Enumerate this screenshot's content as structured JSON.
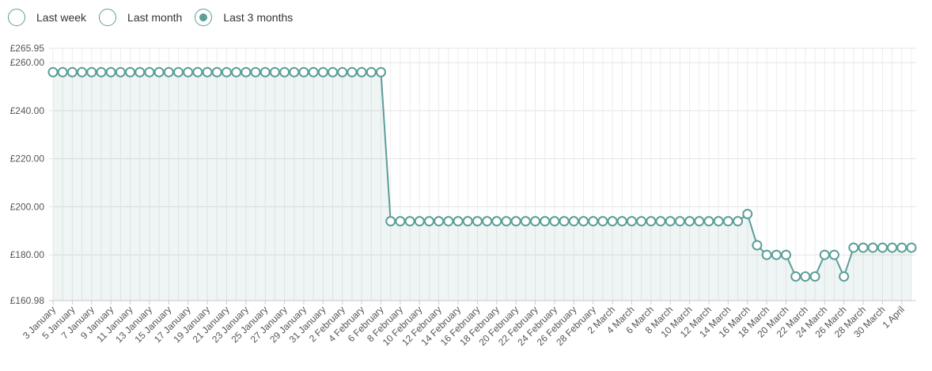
{
  "controls": {
    "options": [
      {
        "label": "Last week",
        "selected": false
      },
      {
        "label": "Last month",
        "selected": false
      },
      {
        "label": "Last 3 months",
        "selected": true
      }
    ]
  },
  "chart_data": {
    "type": "line",
    "categories": [
      "3 January",
      null,
      "5 January",
      null,
      "7 January",
      null,
      "9 January",
      null,
      "11 January",
      null,
      "13 January",
      null,
      "15 January",
      null,
      "17 January",
      null,
      "19 January",
      null,
      "21 January",
      null,
      "23 January",
      null,
      "25 January",
      null,
      "27 January",
      null,
      "29 January",
      null,
      "31 January",
      null,
      "2 February",
      null,
      "4 February",
      null,
      "6 February",
      null,
      "8 February",
      null,
      "10 February",
      null,
      "12 February",
      null,
      "14 February",
      null,
      "16 February",
      null,
      "18 February",
      null,
      "20 February",
      null,
      "22 February",
      null,
      "24 February",
      null,
      "26 February",
      null,
      "28 February",
      null,
      "2 March",
      null,
      "4 March",
      null,
      "6 March",
      null,
      "8 March",
      null,
      "10 March",
      null,
      "12 March",
      null,
      "14 March",
      null,
      "16 March",
      null,
      "18 March",
      null,
      "20 March",
      null,
      "22 March",
      null,
      "24 March",
      null,
      "26 March",
      null,
      "28 March",
      null,
      "30 March",
      null,
      "1 April",
      null
    ],
    "series": [
      {
        "color": "#5a9e98",
        "values": [
          256,
          256,
          256,
          256,
          256,
          256,
          256,
          256,
          256,
          256,
          256,
          256,
          256,
          256,
          256,
          256,
          256,
          256,
          256,
          256,
          256,
          256,
          256,
          256,
          256,
          256,
          256,
          256,
          256,
          256,
          256,
          256,
          256,
          256,
          256,
          194,
          194,
          194,
          194,
          194,
          194,
          194,
          194,
          194,
          194,
          194,
          194,
          194,
          194,
          194,
          194,
          194,
          194,
          194,
          194,
          194,
          194,
          194,
          194,
          194,
          194,
          194,
          194,
          194,
          194,
          194,
          194,
          194,
          194,
          194,
          194,
          194,
          197,
          184,
          180,
          180,
          180,
          171,
          171,
          171,
          180,
          180,
          171,
          183,
          183,
          183,
          183,
          183,
          183,
          183
        ]
      }
    ],
    "ylim": [
      160.98,
      265.95
    ],
    "yticks": [
      {
        "value": 160.98,
        "label": "£160.98"
      },
      {
        "value": 180,
        "label": "£180.00"
      },
      {
        "value": 200,
        "label": "£200.00"
      },
      {
        "value": 220,
        "label": "£220.00"
      },
      {
        "value": 240,
        "label": "£240.00"
      },
      {
        "value": 260,
        "label": "£260.00"
      },
      {
        "value": 265.95,
        "label": "£265.95"
      }
    ],
    "grid": true
  }
}
